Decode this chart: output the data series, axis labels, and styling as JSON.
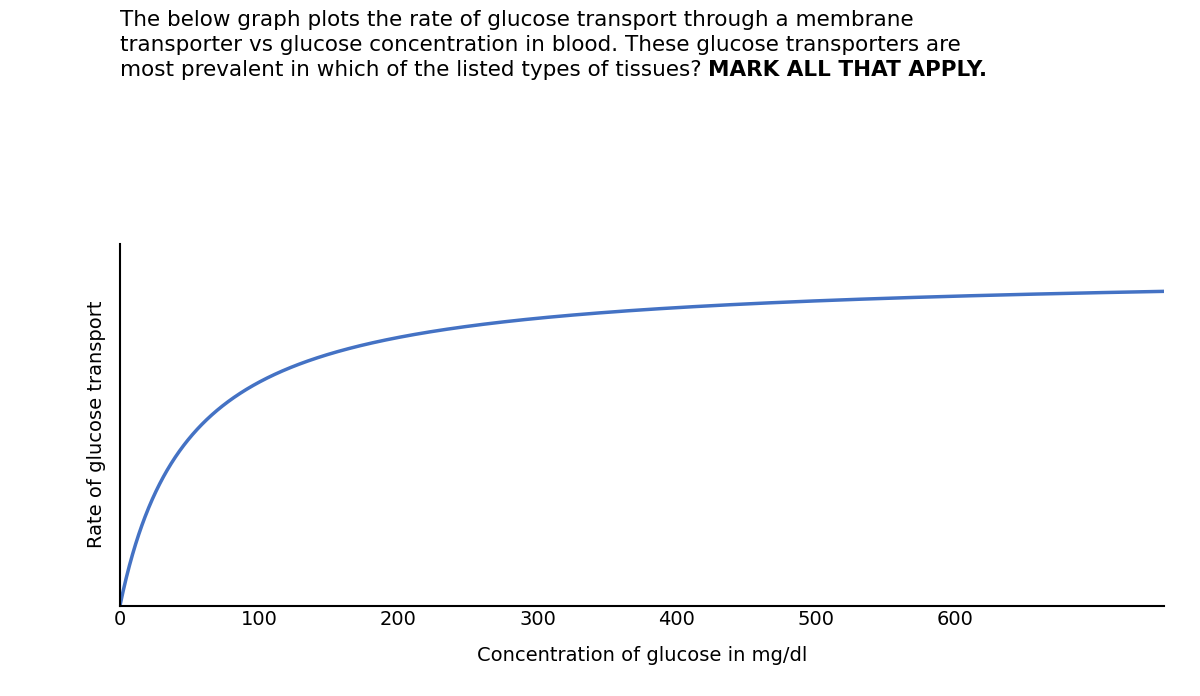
{
  "line1": "The below graph plots the rate of glucose transport through a membrane",
  "line2": "transporter vs glucose concentration in blood. These glucose transporters are",
  "line3_normal": "most prevalent in which of the listed types of tissues? ",
  "line3_bold": "MARK ALL THAT APPLY.",
  "xlabel": "Concentration of glucose in mg/dl",
  "ylabel": "Rate of glucose transport",
  "x_min": 0,
  "x_max": 750,
  "y_min": 0,
  "y_max": 1.08,
  "xticks": [
    0,
    100,
    200,
    300,
    400,
    500,
    600
  ],
  "curve_color": "#4472C4",
  "curve_linewidth": 2.5,
  "km": 50,
  "vmax": 1.0,
  "background_color": "#ffffff",
  "title_fontsize": 15.5,
  "axis_label_fontsize": 14,
  "tick_fontsize": 14
}
